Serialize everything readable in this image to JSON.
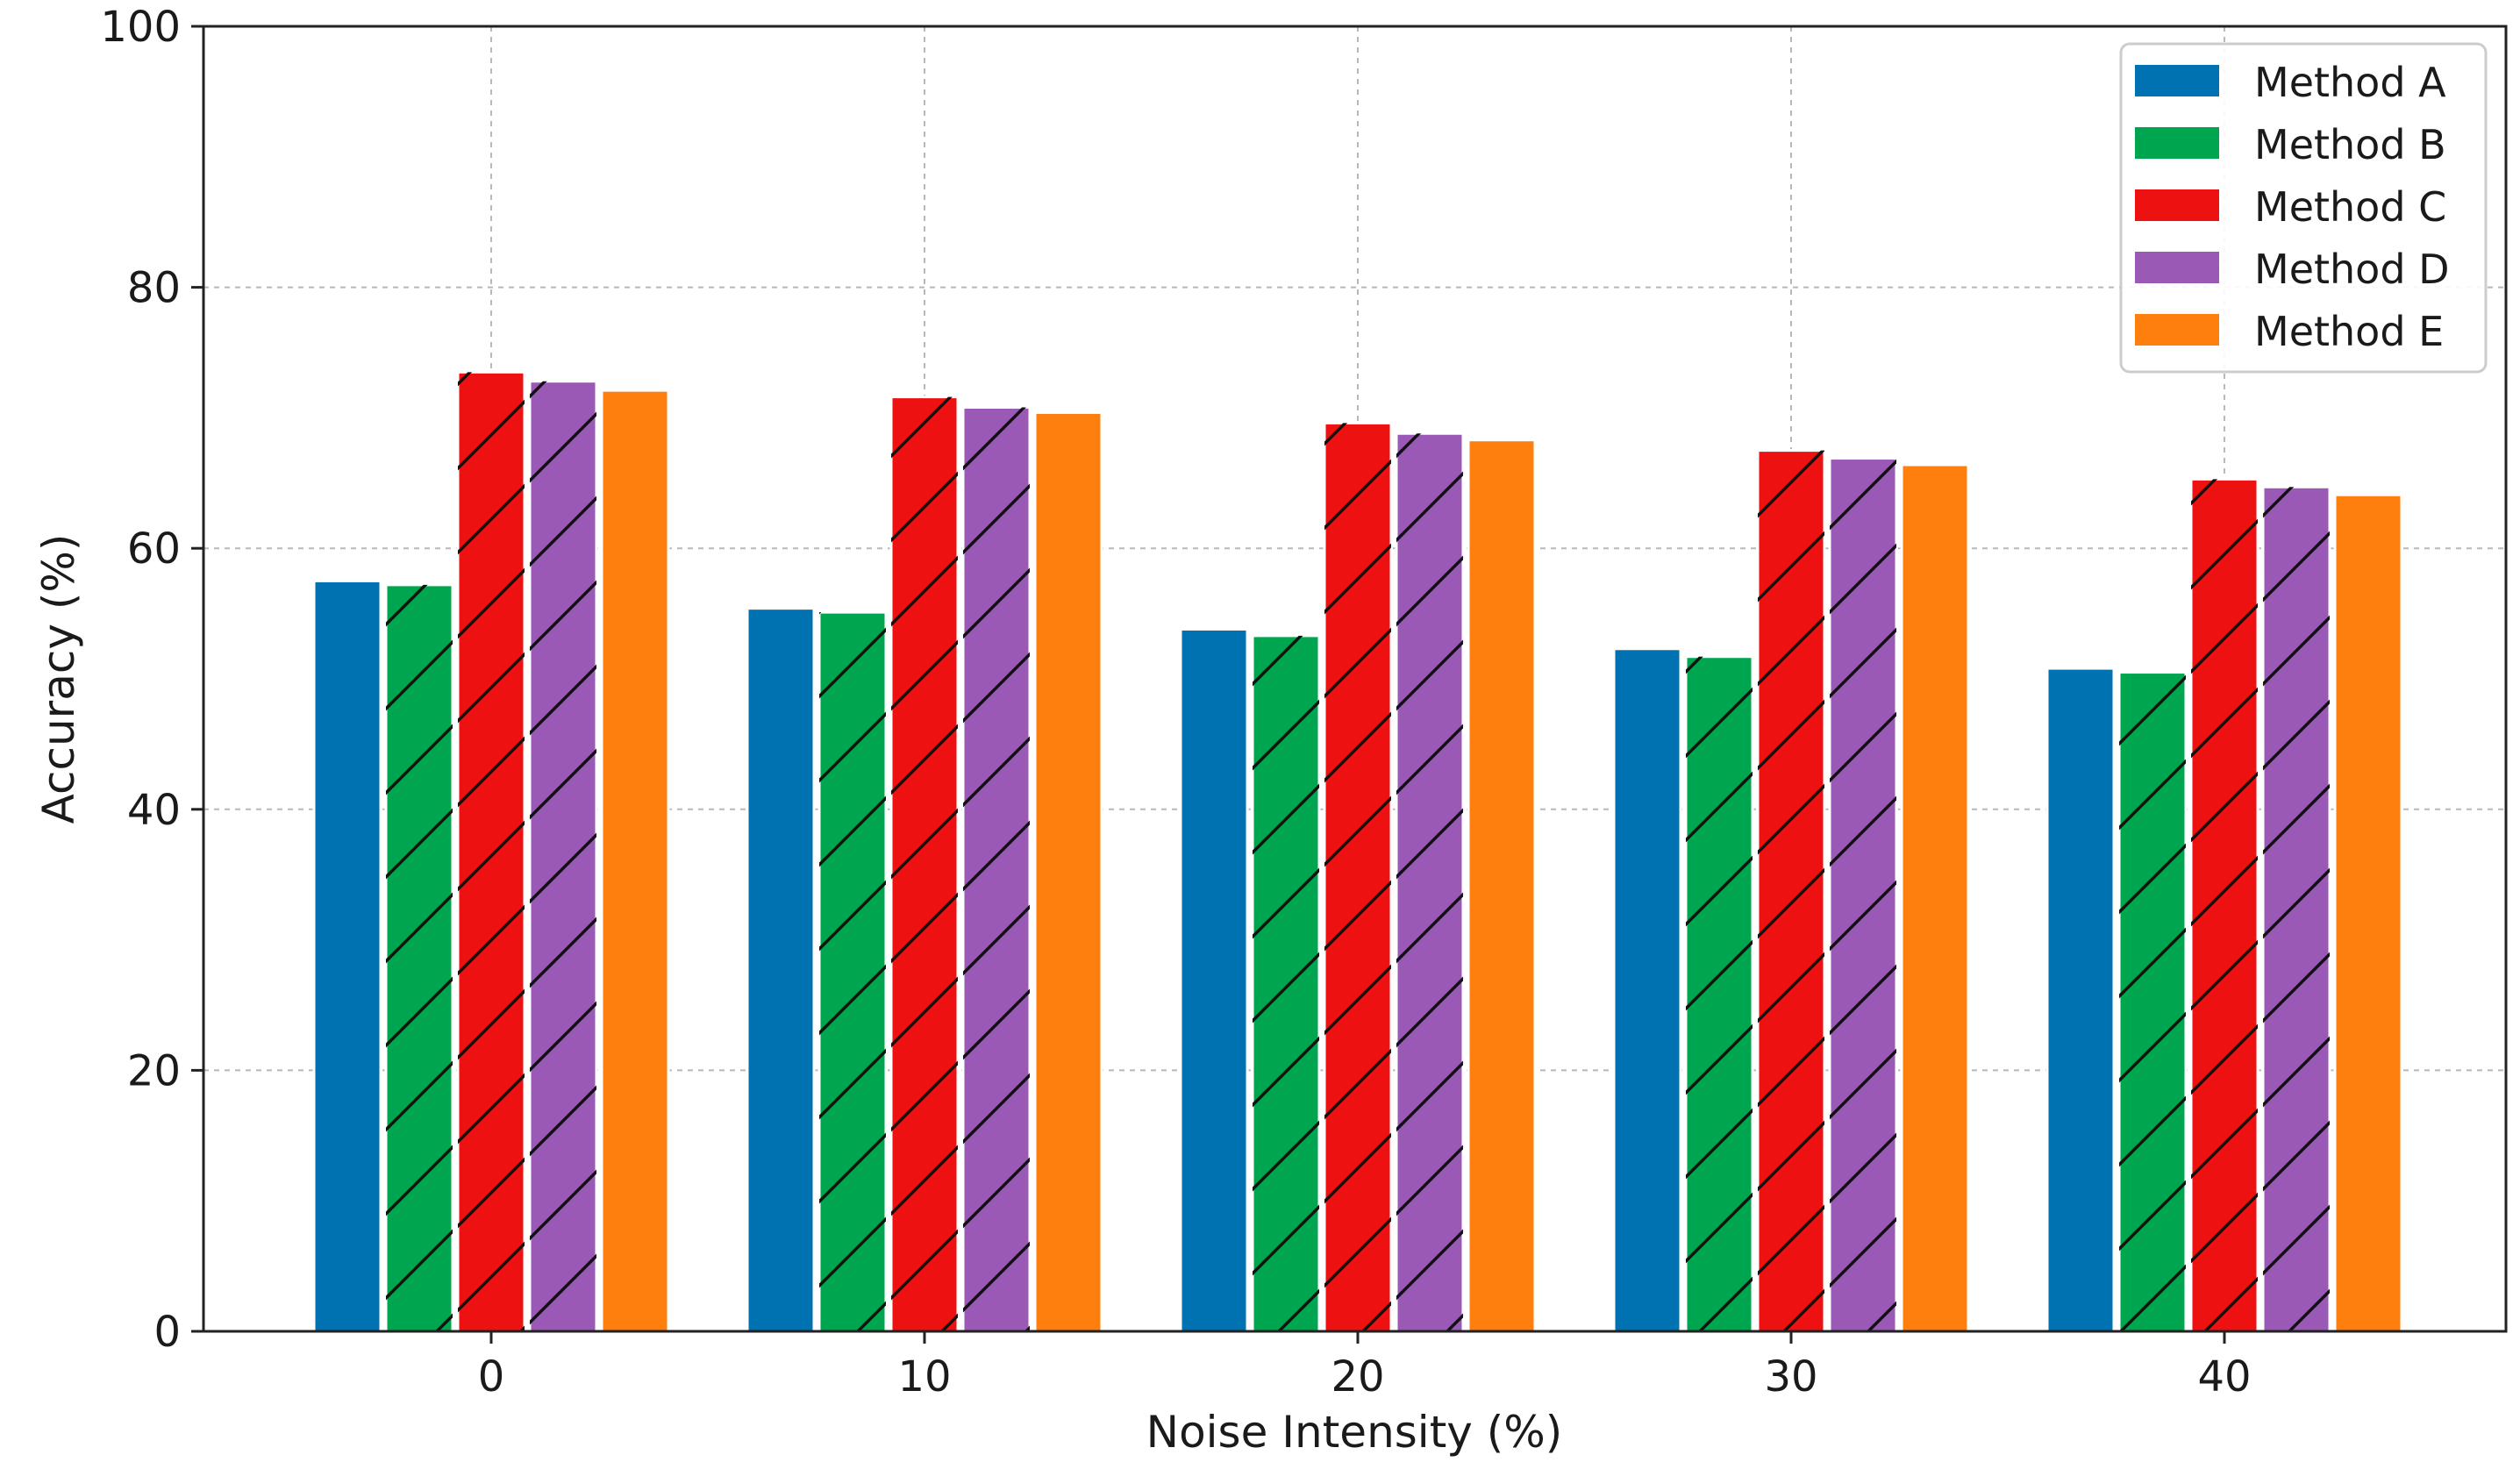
{
  "chart_data": {
    "type": "bar",
    "title": "",
    "xlabel": "Noise Intensity (%)",
    "ylabel": "Accuracy (%)",
    "categories": [
      "0",
      "10",
      "20",
      "30",
      "40"
    ],
    "ylim": [
      0,
      100
    ],
    "yticks": [
      0,
      20,
      40,
      60,
      80,
      100
    ],
    "grid": true,
    "legend_position": "top-right",
    "series": [
      {
        "name": "Method A",
        "color": "#0072b2",
        "hatch": "none",
        "values": [
          57.5,
          55.4,
          53.8,
          52.3,
          50.8
        ]
      },
      {
        "name": "Method B",
        "color": "#00a54f",
        "hatch": "diagonal",
        "values": [
          57.2,
          55.1,
          53.3,
          51.7,
          50.5
        ]
      },
      {
        "name": "Method C",
        "color": "#ee1111",
        "hatch": "diagonal",
        "values": [
          73.5,
          71.6,
          69.6,
          67.5,
          65.3
        ]
      },
      {
        "name": "Method D",
        "color": "#9b59b6",
        "hatch": "diagonal",
        "values": [
          72.8,
          70.8,
          68.8,
          66.9,
          64.7
        ]
      },
      {
        "name": "Method E",
        "color": "#ff7f0e",
        "hatch": "none",
        "values": [
          72.1,
          70.4,
          68.3,
          66.4,
          64.1
        ]
      }
    ]
  }
}
